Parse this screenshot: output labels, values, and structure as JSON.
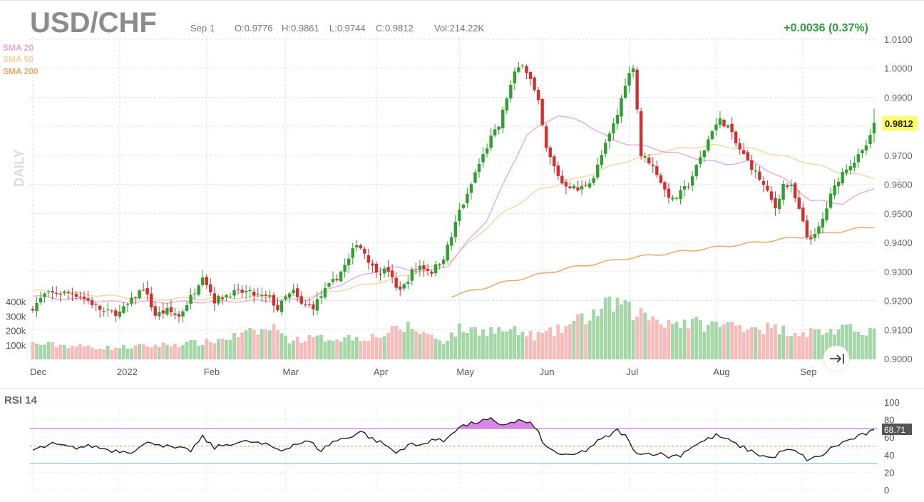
{
  "header": {
    "symbol": "USD/CHF",
    "date": "Sep 1",
    "open": "O:0.9776",
    "high": "H:0.9861",
    "low": "L:0.9744",
    "close": "C:0.9812",
    "volume": "Vol:214.22K",
    "change": "+0.0036 (0.37%)"
  },
  "colors": {
    "up": "#2ea02e",
    "down": "#d32f2f",
    "vol_up": "#a5d6a7",
    "vol_down": "#f8bbbb",
    "sma20": "#e6a6e0",
    "sma50": "#f2d59a",
    "sma200": "#f0a868",
    "rsi_fill": "#d986e6",
    "rsi_line": "#222222",
    "rsi_upper": "#c77ad8",
    "rsi_mid": "#e07a5f",
    "rsi_lower": "#7ec8e3",
    "change_positive": "#2e9e3e",
    "price_tag_bg": "#ffff66"
  },
  "legend": [
    {
      "label": "SMA 20",
      "color_key": "sma20"
    },
    {
      "label": "SMA 50",
      "color_key": "sma50"
    },
    {
      "label": "SMA 200",
      "color_key": "sma200"
    }
  ],
  "period_label": "DAILY",
  "last_price_tag": "0.9812",
  "rsi_title": "RSI 14",
  "rsi_value_tag": "68.71",
  "scroll_button": {
    "icon": "arrow-right-bar-icon"
  },
  "chart_data": {
    "type": "candlestick",
    "title": "USD/CHF",
    "period": "daily",
    "price_axis": {
      "ticks": [
        "1.0100",
        "1.0000",
        "0.9900",
        "0.9800",
        "0.9700",
        "0.9600",
        "0.9500",
        "0.9400",
        "0.9300",
        "0.9200",
        "0.9100",
        "0.9000"
      ],
      "ylim": [
        0.9,
        1.01
      ]
    },
    "volume_axis": {
      "ticks": [
        "400k",
        "300k",
        "200k",
        "100k"
      ],
      "tick_values": [
        400000,
        300000,
        200000,
        100000
      ]
    },
    "x_axis": {
      "labels": [
        "Dec",
        "2022",
        "Feb",
        "Mar",
        "Apr",
        "May",
        "Jun",
        "Jul",
        "Aug",
        "Sep"
      ],
      "label_day_index": [
        0,
        22,
        44,
        64,
        87,
        108,
        129,
        151,
        173,
        195
      ]
    },
    "last": {
      "open": 0.9776,
      "high": 0.9861,
      "low": 0.9744,
      "close": 0.9812,
      "volume": 214220
    },
    "close_anchors": [
      [
        0,
        0.9177
      ],
      [
        3,
        0.922
      ],
      [
        6,
        0.9226
      ],
      [
        10,
        0.9227
      ],
      [
        14,
        0.92
      ],
      [
        18,
        0.916
      ],
      [
        22,
        0.9158
      ],
      [
        25,
        0.92
      ],
      [
        28,
        0.9245
      ],
      [
        31,
        0.915
      ],
      [
        34,
        0.9165
      ],
      [
        37,
        0.9145
      ],
      [
        41,
        0.9235
      ],
      [
        43,
        0.929
      ],
      [
        46,
        0.92
      ],
      [
        50,
        0.9225
      ],
      [
        54,
        0.923
      ],
      [
        57,
        0.9215
      ],
      [
        60,
        0.921
      ],
      [
        62,
        0.917
      ],
      [
        64,
        0.921
      ],
      [
        66,
        0.923
      ],
      [
        68,
        0.9185
      ],
      [
        71,
        0.918
      ],
      [
        74,
        0.9235
      ],
      [
        77,
        0.928
      ],
      [
        80,
        0.934
      ],
      [
        82,
        0.94
      ],
      [
        84,
        0.9365
      ],
      [
        86,
        0.9315
      ],
      [
        88,
        0.93
      ],
      [
        90,
        0.9305
      ],
      [
        92,
        0.924
      ],
      [
        94,
        0.925
      ],
      [
        96,
        0.93
      ],
      [
        98,
        0.932
      ],
      [
        101,
        0.93
      ],
      [
        104,
        0.935
      ],
      [
        106,
        0.942
      ],
      [
        108,
        0.951
      ],
      [
        110,
        0.956
      ],
      [
        112,
        0.964
      ],
      [
        114,
        0.97
      ],
      [
        116,
        0.976
      ],
      [
        118,
        0.98
      ],
      [
        120,
        0.99
      ],
      [
        122,
        0.998
      ],
      [
        124,
        1.002
      ],
      [
        126,
        0.996
      ],
      [
        128,
        0.988
      ],
      [
        130,
        0.972
      ],
      [
        132,
        0.966
      ],
      [
        134,
        0.9605
      ],
      [
        136,
        0.9595
      ],
      [
        138,
        0.958
      ],
      [
        140,
        0.96
      ],
      [
        142,
        0.9625
      ],
      [
        144,
        0.97
      ],
      [
        146,
        0.977
      ],
      [
        148,
        0.984
      ],
      [
        150,
        0.995
      ],
      [
        152,
        1.001
      ],
      [
        153,
        0.986
      ],
      [
        154,
        0.97
      ],
      [
        156,
        0.968
      ],
      [
        158,
        0.964
      ],
      [
        160,
        0.958
      ],
      [
        162,
        0.9545
      ],
      [
        164,
        0.957
      ],
      [
        166,
        0.96
      ],
      [
        168,
        0.966
      ],
      [
        170,
        0.972
      ],
      [
        172,
        0.979
      ],
      [
        174,
        0.982
      ],
      [
        176,
        0.98
      ],
      [
        178,
        0.974
      ],
      [
        180,
        0.97
      ],
      [
        182,
        0.966
      ],
      [
        184,
        0.962
      ],
      [
        186,
        0.957
      ],
      [
        188,
        0.952
      ],
      [
        190,
        0.96
      ],
      [
        192,
        0.959
      ],
      [
        194,
        0.951
      ],
      [
        196,
        0.942
      ],
      [
        198,
        0.942
      ],
      [
        200,
        0.948
      ],
      [
        202,
        0.956
      ],
      [
        204,
        0.962
      ],
      [
        206,
        0.966
      ],
      [
        208,
        0.968
      ],
      [
        210,
        0.971
      ],
      [
        212,
        0.976
      ],
      [
        213,
        0.9812
      ]
    ],
    "volume_profile": [
      [
        0,
        110000
      ],
      [
        20,
        80000
      ],
      [
        44,
        120000
      ],
      [
        63,
        230000
      ],
      [
        64,
        140000
      ],
      [
        87,
        160000
      ],
      [
        95,
        230000
      ],
      [
        104,
        130000
      ],
      [
        108,
        210000
      ],
      [
        121,
        200000
      ],
      [
        127,
        165000
      ],
      [
        132,
        190000
      ],
      [
        148,
        400000
      ],
      [
        150,
        350000
      ],
      [
        160,
        270000
      ],
      [
        172,
        240000
      ],
      [
        180,
        240000
      ],
      [
        195,
        190000
      ],
      [
        213,
        214220
      ]
    ],
    "sma20_anchors": [
      [
        0,
        0.9215
      ],
      [
        20,
        0.9195
      ],
      [
        40,
        0.9195
      ],
      [
        60,
        0.92
      ],
      [
        70,
        0.9205
      ],
      [
        80,
        0.927
      ],
      [
        90,
        0.9315
      ],
      [
        100,
        0.93
      ],
      [
        105,
        0.932
      ],
      [
        115,
        0.948
      ],
      [
        125,
        0.977
      ],
      [
        133,
        0.984
      ],
      [
        140,
        0.981
      ],
      [
        147,
        0.975
      ],
      [
        155,
        0.973
      ],
      [
        165,
        0.97
      ],
      [
        175,
        0.967
      ],
      [
        182,
        0.968
      ],
      [
        190,
        0.962
      ],
      [
        197,
        0.9545
      ],
      [
        205,
        0.9535
      ],
      [
        213,
        0.959
      ]
    ],
    "sma50_anchors": [
      [
        0,
        0.9235
      ],
      [
        30,
        0.9205
      ],
      [
        50,
        0.921
      ],
      [
        70,
        0.9215
      ],
      [
        90,
        0.927
      ],
      [
        105,
        0.933
      ],
      [
        118,
        0.949
      ],
      [
        128,
        0.958
      ],
      [
        140,
        0.963
      ],
      [
        150,
        0.968
      ],
      [
        162,
        0.972
      ],
      [
        172,
        0.9735
      ],
      [
        183,
        0.972
      ],
      [
        195,
        0.968
      ],
      [
        205,
        0.964
      ],
      [
        213,
        0.9625
      ]
    ],
    "sma200_start_index": 106,
    "sma200_anchors": [
      [
        106,
        0.9215
      ],
      [
        120,
        0.9265
      ],
      [
        135,
        0.931
      ],
      [
        150,
        0.9345
      ],
      [
        165,
        0.937
      ],
      [
        180,
        0.9395
      ],
      [
        195,
        0.942
      ],
      [
        213,
        0.9455
      ]
    ],
    "rsi": {
      "title": "RSI 14",
      "ticks": [
        "100",
        "80",
        "60",
        "40",
        "20",
        "0"
      ],
      "ylim": [
        0,
        100
      ],
      "upper": 70,
      "middle": 50,
      "lower": 30,
      "last": 68.71,
      "anchors": [
        [
          0,
          45
        ],
        [
          5,
          52
        ],
        [
          10,
          48
        ],
        [
          15,
          50
        ],
        [
          20,
          45
        ],
        [
          25,
          44
        ],
        [
          30,
          55
        ],
        [
          35,
          48
        ],
        [
          40,
          45
        ],
        [
          43,
          60
        ],
        [
          46,
          48
        ],
        [
          50,
          53
        ],
        [
          55,
          55
        ],
        [
          60,
          50
        ],
        [
          63,
          45
        ],
        [
          66,
          52
        ],
        [
          70,
          55
        ],
        [
          73,
          45
        ],
        [
          76,
          55
        ],
        [
          80,
          60
        ],
        [
          83,
          67
        ],
        [
          86,
          58
        ],
        [
          89,
          52
        ],
        [
          92,
          42
        ],
        [
          95,
          52
        ],
        [
          98,
          50
        ],
        [
          101,
          58
        ],
        [
          104,
          55
        ],
        [
          106,
          65
        ],
        [
          108,
          72
        ],
        [
          110,
          74
        ],
        [
          113,
          78
        ],
        [
          116,
          80
        ],
        [
          118,
          73
        ],
        [
          120,
          76
        ],
        [
          123,
          79
        ],
        [
          126,
          76
        ],
        [
          128,
          65
        ],
        [
          130,
          48
        ],
        [
          133,
          42
        ],
        [
          136,
          38
        ],
        [
          140,
          45
        ],
        [
          143,
          55
        ],
        [
          146,
          62
        ],
        [
          148,
          68
        ],
        [
          150,
          62
        ],
        [
          152,
          45
        ],
        [
          155,
          41
        ],
        [
          158,
          42
        ],
        [
          161,
          38
        ],
        [
          164,
          40
        ],
        [
          167,
          50
        ],
        [
          170,
          56
        ],
        [
          173,
          62
        ],
        [
          175,
          59
        ],
        [
          178,
          52
        ],
        [
          181,
          46
        ],
        [
          184,
          40
        ],
        [
          187,
          36
        ],
        [
          190,
          45
        ],
        [
          193,
          44
        ],
        [
          196,
          35
        ],
        [
          199,
          37
        ],
        [
          202,
          47
        ],
        [
          205,
          54
        ],
        [
          208,
          59
        ],
        [
          211,
          64
        ],
        [
          213,
          68.71
        ]
      ]
    },
    "grid": true
  }
}
